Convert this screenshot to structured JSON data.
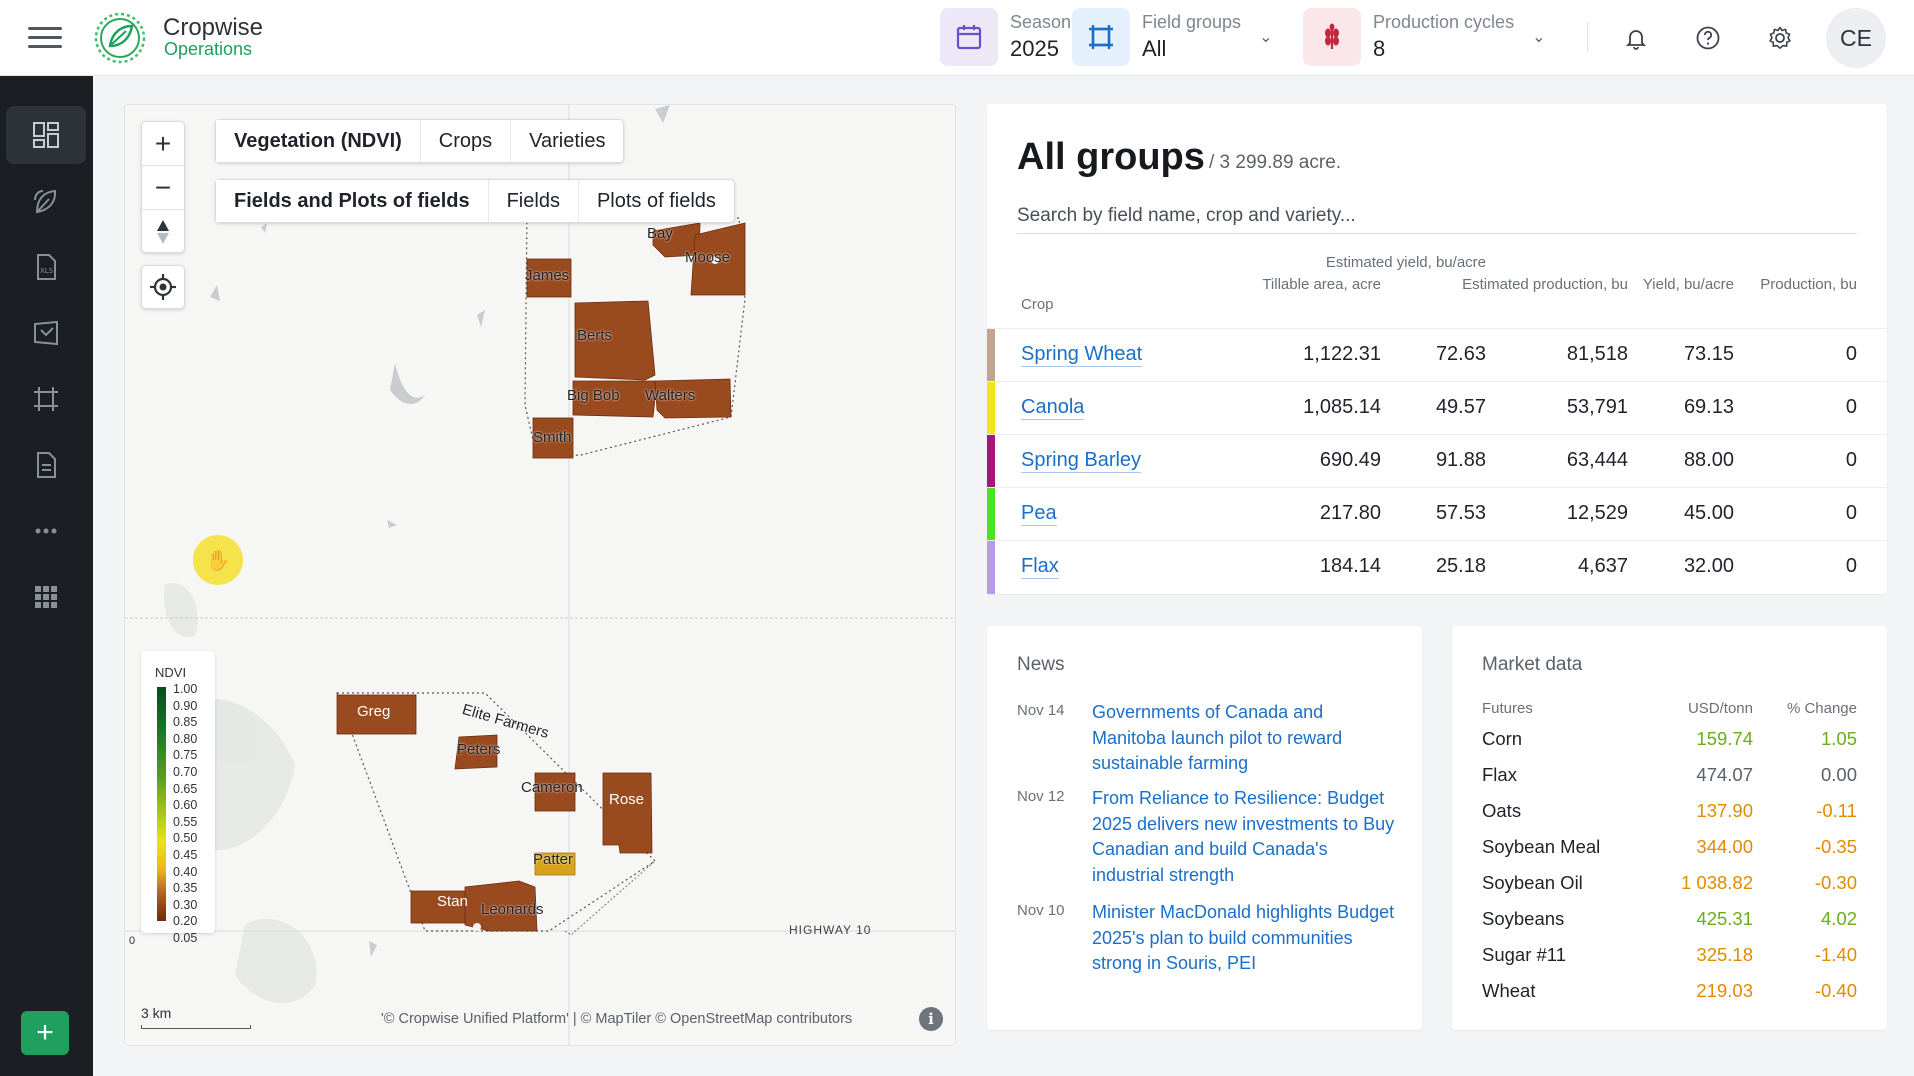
{
  "app": {
    "name": "Cropwise",
    "subname": "Operations"
  },
  "header": {
    "season": {
      "label": "Season",
      "value": "2025"
    },
    "field_groups": {
      "label": "Field groups",
      "value": "All"
    },
    "production_cycles": {
      "label": "Production cycles",
      "value": "8"
    },
    "user_initials": "CE"
  },
  "nav": {
    "items": [
      "dashboard-icon",
      "crops-icon",
      "spreadsheet-icon",
      "field-map-icon",
      "crop-frame-icon",
      "document-icon",
      "more-icon",
      "apps-grid-icon"
    ],
    "add_label": "+"
  },
  "map": {
    "zoom_in": "+",
    "zoom_out": "−",
    "layer_tabs": [
      "Vegetation (NDVI)",
      "Crops",
      "Varieties"
    ],
    "active_layer": "Vegetation (NDVI)",
    "view_tabs": [
      "Fields and Plots of fields",
      "Fields",
      "Plots of fields"
    ],
    "active_view": "Fields and Plots of fields",
    "legend_title": "NDVI",
    "legend_values": [
      "1.00",
      "0.90",
      "0.85",
      "0.80",
      "0.75",
      "0.70",
      "0.65",
      "0.60",
      "0.55",
      "0.50",
      "0.45",
      "0.40",
      "0.35",
      "0.30",
      "0.20",
      "0.05"
    ],
    "field_labels": [
      "Bay",
      "Moose",
      "James",
      "Berts",
      "Big Bob",
      "Walters",
      "Smith",
      "Greg",
      "Elite Farmers",
      "Peters",
      "Cameron",
      "Rose",
      "Patter",
      "Stan",
      "Leonards"
    ],
    "road_label": "HIGHWAY 10",
    "legend_zero": "0",
    "scale": "3 km",
    "attribution": "'© Cropwise Unified Platform' | © MapTiler © OpenStreetMap contributors",
    "info": "i"
  },
  "groups": {
    "title": "All groups",
    "subtitle": "/ 3 299.89 acre.",
    "search_placeholder": "Search by field name, crop and variety...",
    "columns": [
      "Crop",
      "Tillable area, acre",
      "Estimated yield, bu/acre",
      "Estimated production, bu",
      "Yield, bu/acre",
      "Production, bu"
    ],
    "rows": [
      {
        "crop": "Spring Wheat",
        "color": "#c3a493",
        "area": "1,122.31",
        "est_yield": "72.63",
        "est_prod": "81,518",
        "yield": "73.15",
        "prod": "0"
      },
      {
        "crop": "Canola",
        "color": "#f1e51a",
        "area": "1,085.14",
        "est_yield": "49.57",
        "est_prod": "53,791",
        "yield": "69.13",
        "prod": "0"
      },
      {
        "crop": "Spring Barley",
        "color": "#a2167d",
        "area": "690.49",
        "est_yield": "91.88",
        "est_prod": "63,444",
        "yield": "88.00",
        "prod": "0"
      },
      {
        "crop": "Pea",
        "color": "#4be326",
        "area": "217.80",
        "est_yield": "57.53",
        "est_prod": "12,529",
        "yield": "45.00",
        "prod": "0"
      },
      {
        "crop": "Flax",
        "color": "#b59be8",
        "area": "184.14",
        "est_yield": "25.18",
        "est_prod": "4,637",
        "yield": "32.00",
        "prod": "0"
      }
    ]
  },
  "news": {
    "title": "News",
    "items": [
      {
        "date": "Nov 14",
        "text": "Governments of Canada and Manitoba launch pilot to reward sustainable farming"
      },
      {
        "date": "Nov 12",
        "text": "From Reliance to Resilience: Budget 2025 delivers new investments to Buy Canadian and build Canada's industrial strength"
      },
      {
        "date": "Nov 10",
        "text": "Minister MacDonald highlights Budget 2025's plan to build communities strong in Souris, PEI"
      }
    ]
  },
  "market": {
    "title": "Market data",
    "headers": [
      "Futures",
      "USD/tonn",
      "% Change"
    ],
    "rows": [
      {
        "name": "Corn",
        "price": "159.74",
        "change": "1.05",
        "trend": "up"
      },
      {
        "name": "Flax",
        "price": "474.07",
        "change": "0.00",
        "trend": "flat"
      },
      {
        "name": "Oats",
        "price": "137.90",
        "change": "-0.11",
        "trend": "down"
      },
      {
        "name": "Soybean Meal",
        "price": "344.00",
        "change": "-0.35",
        "trend": "down"
      },
      {
        "name": "Soybean Oil",
        "price": "1 038.82",
        "change": "-0.30",
        "trend": "down"
      },
      {
        "name": "Soybeans",
        "price": "425.31",
        "change": "4.02",
        "trend": "up"
      },
      {
        "name": "Sugar #11",
        "price": "325.18",
        "change": "-1.40",
        "trend": "down"
      },
      {
        "name": "Wheat",
        "price": "219.03",
        "change": "-0.40",
        "trend": "down"
      }
    ]
  },
  "colors": {
    "brand_green": "#1fa05e",
    "link_blue": "#1a6fc9",
    "field_brown": "#9a4a1f",
    "nav_dark": "#1b1e23"
  }
}
